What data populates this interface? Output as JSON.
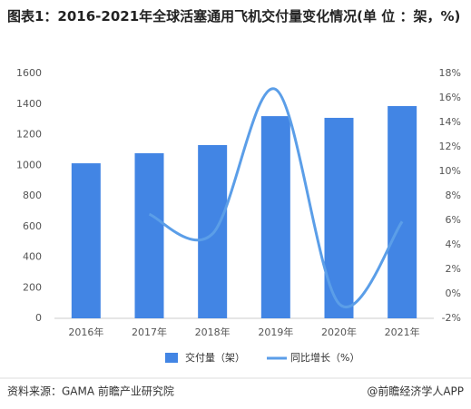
{
  "chart_data": {
    "type": "bar-line",
    "title": "图表1：2016-2021年全球活塞通用飞机交付量变化情况(单 位 ：架，%)",
    "categories": [
      "2016年",
      "2017年",
      "2018年",
      "2019年",
      "2020年",
      "2021年"
    ],
    "series": [
      {
        "name": "交付量（架）",
        "type": "bar",
        "color": "#4285e4",
        "values": [
          1013,
          1079,
          1132,
          1321,
          1310,
          1387
        ]
      },
      {
        "name": "同比增长（%）",
        "type": "line",
        "axis": "y2",
        "color": "#5b9ee8",
        "values": [
          null,
          6.5,
          4.9,
          16.7,
          -0.8,
          5.9
        ]
      }
    ],
    "ylim": [
      0,
      1600
    ],
    "yticks": [
      0,
      200,
      400,
      600,
      800,
      1000,
      1200,
      1400,
      1600
    ],
    "y2lim": [
      -2,
      18
    ],
    "y2ticks": [
      {
        "value": -2,
        "label": "-2%"
      },
      {
        "value": 0,
        "label": "0%"
      },
      {
        "value": 2,
        "label": "2%"
      },
      {
        "value": 4,
        "label": "4%"
      },
      {
        "value": 6,
        "label": "6%"
      },
      {
        "value": 8,
        "label": "8%"
      },
      {
        "value": 10,
        "label": "10%"
      },
      {
        "value": 12,
        "label": "12%"
      },
      {
        "value": 14,
        "label": "14%"
      },
      {
        "value": 16,
        "label": "16%"
      },
      {
        "value": 18,
        "label": "18%"
      }
    ],
    "grid": false,
    "source": "资料来源：GAMA 前瞻产业研究院",
    "credit": "@前瞻经济学人APP"
  }
}
